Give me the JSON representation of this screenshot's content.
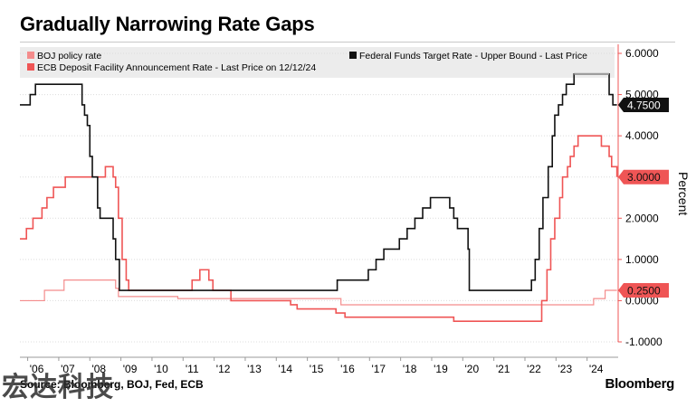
{
  "title": "Gradually Narrowing Rate Gaps",
  "source": "Source: Bloomberg, BOJ, Fed, ECB",
  "brand": "Bloomberg",
  "watermark": "宏达科技",
  "colors": {
    "boj": "#f48c8c",
    "ecb": "#ef5555",
    "fed": "#111111",
    "fed_highlight": "#9a9a9a",
    "legend_bg": "#ececec",
    "grid": "#dcdcdc",
    "axis": "#ef5555"
  },
  "chart_data": {
    "type": "line",
    "title": "Gradually Narrowing Rate Gaps",
    "ylabel": "Percent",
    "ylim": [
      -1.0,
      6.0
    ],
    "xlim": [
      2005.75,
      2025.0
    ],
    "y_ticks": [
      "6.0000",
      "5.0000",
      "4.0000",
      "3.0000",
      "2.0000",
      "1.0000",
      "0.0000",
      "-1.0000"
    ],
    "x_ticks": [
      "'06",
      "'07",
      "'08",
      "'09",
      "'10",
      "'11",
      "'12",
      "'13",
      "'14",
      "'15",
      "'16",
      "'17",
      "'18",
      "'19",
      "'20",
      "'21",
      "'22",
      "'23",
      "'24"
    ],
    "legend": [
      {
        "key": "boj",
        "label": "BOJ policy rate"
      },
      {
        "key": "ecb",
        "label": "ECB Deposit Facility Announcement Rate - Last Price on 12/12/24"
      },
      {
        "key": "fed",
        "label": "Federal Funds Target Rate - Upper Bound - Last Price"
      }
    ],
    "last_values": [
      {
        "key": "fed",
        "label": "4.7500",
        "value": 4.75
      },
      {
        "key": "ecb",
        "label": "3.0000",
        "value": 3.0
      },
      {
        "key": "boj",
        "label": "0.2500",
        "value": 0.25
      }
    ],
    "series": [
      {
        "name": "Federal Funds Target Rate - Upper Bound",
        "key": "fed",
        "points": [
          [
            2005.75,
            4.75
          ],
          [
            2006.08,
            5.0
          ],
          [
            2006.25,
            5.25
          ],
          [
            2007.67,
            5.25
          ],
          [
            2007.75,
            4.75
          ],
          [
            2007.83,
            4.5
          ],
          [
            2007.92,
            4.25
          ],
          [
            2008.0,
            3.5
          ],
          [
            2008.08,
            3.0
          ],
          [
            2008.25,
            2.25
          ],
          [
            2008.33,
            2.0
          ],
          [
            2008.75,
            1.5
          ],
          [
            2008.83,
            1.0
          ],
          [
            2008.95,
            0.25
          ],
          [
            2015.96,
            0.5
          ],
          [
            2016.96,
            0.75
          ],
          [
            2017.21,
            1.0
          ],
          [
            2017.46,
            1.25
          ],
          [
            2017.96,
            1.5
          ],
          [
            2018.21,
            1.75
          ],
          [
            2018.46,
            2.0
          ],
          [
            2018.71,
            2.25
          ],
          [
            2018.96,
            2.5
          ],
          [
            2019.58,
            2.25
          ],
          [
            2019.71,
            2.0
          ],
          [
            2019.83,
            1.75
          ],
          [
            2020.17,
            1.25
          ],
          [
            2020.21,
            0.25
          ],
          [
            2022.21,
            0.5
          ],
          [
            2022.33,
            1.0
          ],
          [
            2022.46,
            1.75
          ],
          [
            2022.58,
            2.5
          ],
          [
            2022.75,
            3.25
          ],
          [
            2022.88,
            4.0
          ],
          [
            2022.96,
            4.5
          ],
          [
            2023.08,
            4.75
          ],
          [
            2023.21,
            5.0
          ],
          [
            2023.33,
            5.25
          ],
          [
            2023.58,
            5.5
          ],
          [
            2024.71,
            5.0
          ],
          [
            2024.83,
            4.75
          ],
          [
            2024.96,
            4.75
          ]
        ]
      },
      {
        "name": "ECB Deposit Facility Announcement Rate",
        "key": "ecb",
        "points": [
          [
            2005.75,
            1.5
          ],
          [
            2005.96,
            1.75
          ],
          [
            2006.17,
            2.0
          ],
          [
            2006.46,
            2.25
          ],
          [
            2006.62,
            2.5
          ],
          [
            2006.83,
            2.75
          ],
          [
            2006.96,
            2.75
          ],
          [
            2007.21,
            3.0
          ],
          [
            2008.5,
            3.25
          ],
          [
            2008.75,
            3.0
          ],
          [
            2008.83,
            2.75
          ],
          [
            2008.92,
            2.0
          ],
          [
            2009.04,
            1.0
          ],
          [
            2009.17,
            0.5
          ],
          [
            2009.25,
            0.25
          ],
          [
            2011.29,
            0.5
          ],
          [
            2011.54,
            0.75
          ],
          [
            2011.83,
            0.5
          ],
          [
            2011.96,
            0.25
          ],
          [
            2012.54,
            0.0
          ],
          [
            2014.46,
            -0.1
          ],
          [
            2014.67,
            -0.2
          ],
          [
            2015.92,
            -0.3
          ],
          [
            2016.21,
            -0.4
          ],
          [
            2019.71,
            -0.5
          ],
          [
            2022.54,
            0.0
          ],
          [
            2022.71,
            0.75
          ],
          [
            2022.83,
            1.5
          ],
          [
            2022.96,
            2.0
          ],
          [
            2023.12,
            2.5
          ],
          [
            2023.21,
            3.0
          ],
          [
            2023.37,
            3.25
          ],
          [
            2023.46,
            3.5
          ],
          [
            2023.58,
            3.75
          ],
          [
            2023.71,
            4.0
          ],
          [
            2024.46,
            3.75
          ],
          [
            2024.71,
            3.5
          ],
          [
            2024.79,
            3.25
          ],
          [
            2024.96,
            3.0
          ]
        ]
      },
      {
        "name": "BOJ policy rate",
        "key": "boj",
        "points": [
          [
            2005.75,
            0.0
          ],
          [
            2006.54,
            0.25
          ],
          [
            2007.17,
            0.5
          ],
          [
            2008.83,
            0.3
          ],
          [
            2008.92,
            0.1
          ],
          [
            2010.83,
            0.05
          ],
          [
            2016.08,
            -0.1
          ],
          [
            2024.21,
            0.05
          ],
          [
            2024.58,
            0.25
          ],
          [
            2024.96,
            0.25
          ]
        ]
      }
    ]
  }
}
